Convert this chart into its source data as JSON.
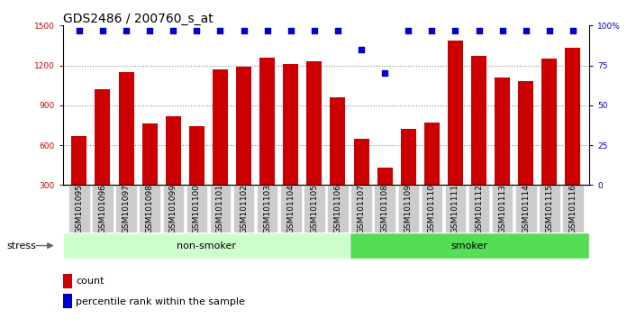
{
  "title": "GDS2486 / 200760_s_at",
  "samples": [
    "GSM101095",
    "GSM101096",
    "GSM101097",
    "GSM101098",
    "GSM101099",
    "GSM101100",
    "GSM101101",
    "GSM101102",
    "GSM101103",
    "GSM101104",
    "GSM101105",
    "GSM101106",
    "GSM101107",
    "GSM101108",
    "GSM101109",
    "GSM101110",
    "GSM101111",
    "GSM101112",
    "GSM101113",
    "GSM101114",
    "GSM101115",
    "GSM101116"
  ],
  "counts": [
    670,
    1020,
    1150,
    760,
    820,
    740,
    1170,
    1190,
    1260,
    1210,
    1230,
    960,
    650,
    430,
    720,
    770,
    1390,
    1270,
    1110,
    1080,
    1250,
    1330
  ],
  "percentile_ranks": [
    97,
    97,
    97,
    97,
    97,
    97,
    97,
    97,
    97,
    97,
    97,
    97,
    85,
    70,
    97,
    97,
    97,
    97,
    97,
    97,
    97,
    97
  ],
  "n_nonsmoker": 12,
  "n_smoker": 10,
  "ylim_left": [
    300,
    1500
  ],
  "ylim_right": [
    0,
    100
  ],
  "yticks_left": [
    300,
    600,
    900,
    1200,
    1500
  ],
  "yticks_right": [
    0,
    25,
    50,
    75,
    100
  ],
  "bar_color": "#cc0000",
  "dot_color": "#0000cc",
  "non_smoker_color": "#ccffcc",
  "smoker_color": "#55dd55",
  "stress_label": "stress",
  "non_smoker_label": "non-smoker",
  "smoker_label": "smoker",
  "legend_count_label": "count",
  "legend_pct_label": "percentile rank within the sample",
  "grid_color": "#888888",
  "plot_bg_color": "#ffffff",
  "tick_box_color": "#cccccc",
  "title_fontsize": 10,
  "tick_fontsize": 6.5,
  "label_fontsize": 8,
  "legend_fontsize": 8
}
